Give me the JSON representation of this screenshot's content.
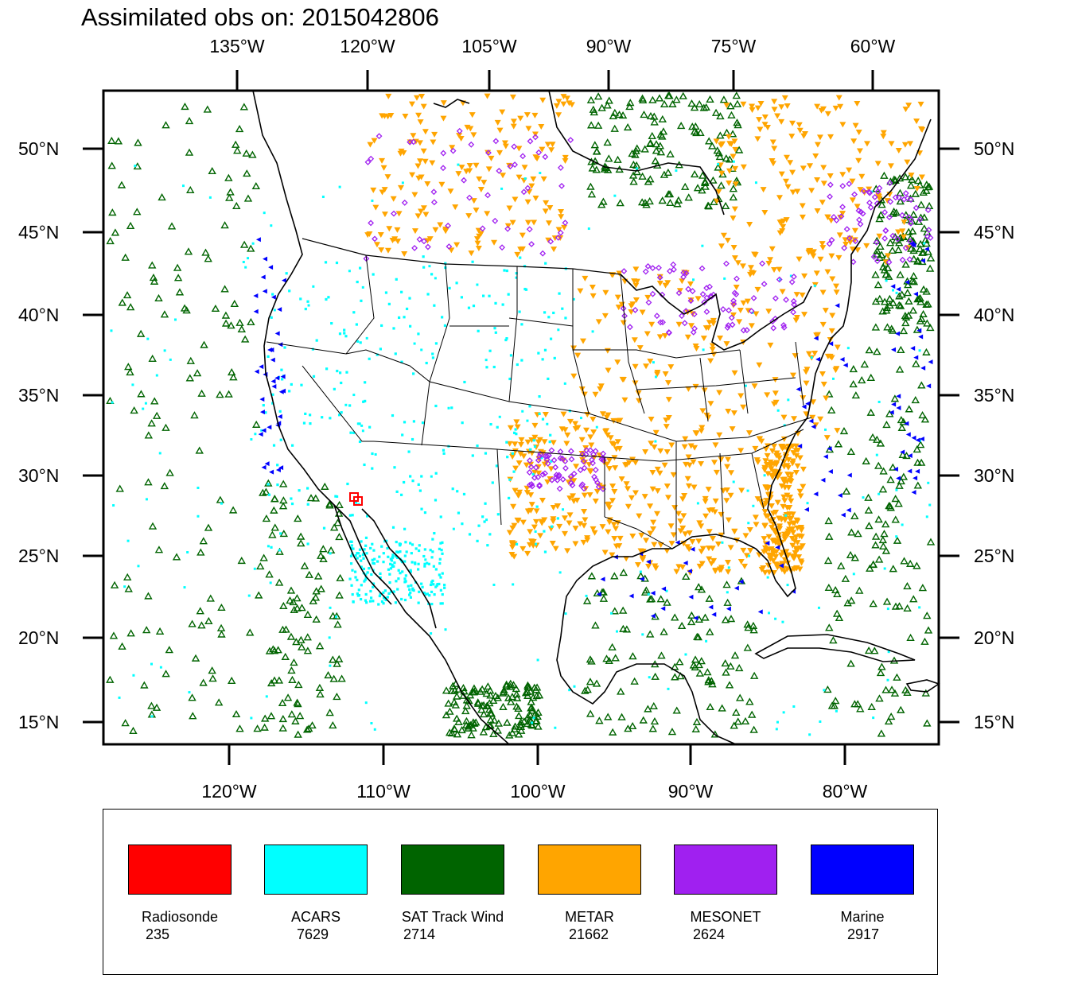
{
  "title": "Assimilated obs on: 2015042806",
  "axes": {
    "top_lon_labels": [
      "135°W",
      "120°W",
      "105°W",
      "90°W",
      "75°W",
      "60°W"
    ],
    "bottom_lon_labels": [
      "120°W",
      "110°W",
      "100°W",
      "90°W",
      "80°W"
    ],
    "lat_labels": [
      "50°N",
      "45°N",
      "40°N",
      "35°N",
      "30°N",
      "25°N",
      "20°N",
      "15°N"
    ]
  },
  "legend": {
    "items": [
      {
        "name": "Radiosonde",
        "count": "235",
        "color": "#ff0000"
      },
      {
        "name": "ACARS",
        "count": "7629",
        "color": "#00ffff"
      },
      {
        "name": "SAT Track Wind",
        "count": "2714",
        "color": "#006400"
      },
      {
        "name": "METAR",
        "count": "21662",
        "color": "#ffa500"
      },
      {
        "name": "MESONET",
        "count": "2624",
        "color": "#a020f0"
      },
      {
        "name": "Marine",
        "count": "2917",
        "color": "#0000ff"
      }
    ]
  },
  "colors": {
    "radiosonde": "#ff0000",
    "acars": "#00ffff",
    "sat_track_wind": "#006400",
    "metar": "#ffa500",
    "mesonet": "#a020f0",
    "marine": "#0000ff"
  }
}
